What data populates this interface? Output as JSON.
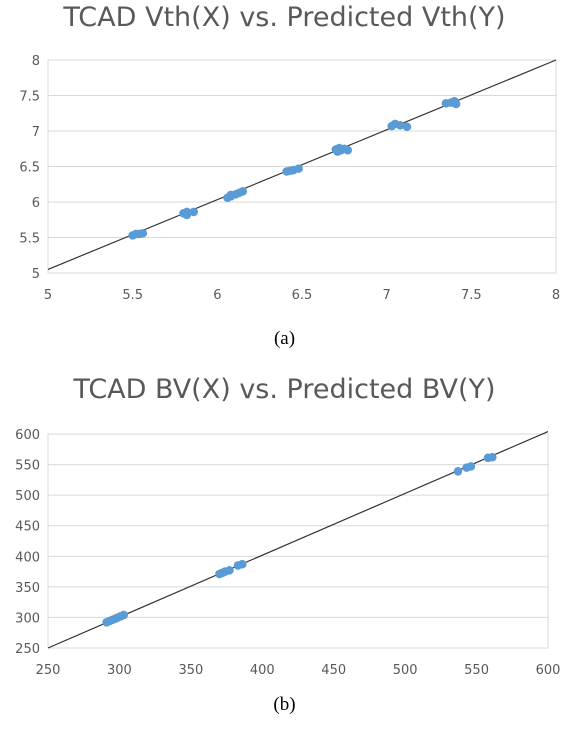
{
  "chart_data": [
    {
      "type": "scatter",
      "title": "TCAD Vth(X) vs. Predicted Vth(Y)",
      "caption": "(a)",
      "xlabel": "",
      "ylabel": "",
      "xlim": [
        5,
        8
      ],
      "ylim": [
        5,
        8
      ],
      "xticks": [
        "5",
        "5.5",
        "6",
        "6.5",
        "7",
        "7.5",
        "8"
      ],
      "yticks": [
        "5",
        "5.5",
        "6",
        "6.5",
        "7",
        "7.5",
        "8"
      ],
      "grid": "horizontal",
      "legend": "none",
      "marker_color": "#5B9BD5",
      "line_color": "#333333",
      "reference_line": [
        [
          5,
          5.05
        ],
        [
          8,
          8.0
        ]
      ],
      "points": [
        [
          5.5,
          5.53
        ],
        [
          5.52,
          5.55
        ],
        [
          5.54,
          5.55
        ],
        [
          5.56,
          5.56
        ],
        [
          5.8,
          5.84
        ],
        [
          5.82,
          5.86
        ],
        [
          5.82,
          5.82
        ],
        [
          5.86,
          5.86
        ],
        [
          6.06,
          6.06
        ],
        [
          6.08,
          6.1
        ],
        [
          6.08,
          6.08
        ],
        [
          6.11,
          6.11
        ],
        [
          6.13,
          6.13
        ],
        [
          6.15,
          6.15
        ],
        [
          6.41,
          6.43
        ],
        [
          6.43,
          6.44
        ],
        [
          6.45,
          6.45
        ],
        [
          6.48,
          6.47
        ],
        [
          6.7,
          6.74
        ],
        [
          6.71,
          6.71
        ],
        [
          6.72,
          6.76
        ],
        [
          6.73,
          6.73
        ],
        [
          6.75,
          6.75
        ],
        [
          6.77,
          6.73
        ],
        [
          7.03,
          7.07
        ],
        [
          7.05,
          7.1
        ],
        [
          7.08,
          7.08
        ],
        [
          7.12,
          7.06
        ],
        [
          7.35,
          7.39
        ],
        [
          7.38,
          7.4
        ],
        [
          7.4,
          7.42
        ],
        [
          7.41,
          7.38
        ]
      ]
    },
    {
      "type": "scatter",
      "title": "TCAD BV(X) vs. Predicted BV(Y)",
      "caption": "(b)",
      "xlabel": "",
      "ylabel": "",
      "xlim": [
        250,
        600
      ],
      "ylim": [
        250,
        600
      ],
      "xticks": [
        "250",
        "300",
        "350",
        "400",
        "450",
        "500",
        "550",
        "600"
      ],
      "yticks": [
        "250",
        "300",
        "350",
        "400",
        "450",
        "500",
        "550",
        "600"
      ],
      "grid": "horizontal",
      "legend": "none",
      "marker_color": "#5B9BD5",
      "line_color": "#333333",
      "reference_line": [
        [
          250,
          250
        ],
        [
          600,
          604
        ]
      ],
      "points": [
        [
          291,
          292
        ],
        [
          293,
          294
        ],
        [
          295,
          296
        ],
        [
          297,
          298
        ],
        [
          299,
          300
        ],
        [
          301,
          302
        ],
        [
          303,
          304
        ],
        [
          370,
          371
        ],
        [
          372,
          373
        ],
        [
          374,
          375
        ],
        [
          377,
          377
        ],
        [
          383,
          385
        ],
        [
          386,
          387
        ],
        [
          537,
          539
        ],
        [
          543,
          545
        ],
        [
          546,
          547
        ],
        [
          558,
          561
        ],
        [
          561,
          562
        ]
      ]
    }
  ]
}
